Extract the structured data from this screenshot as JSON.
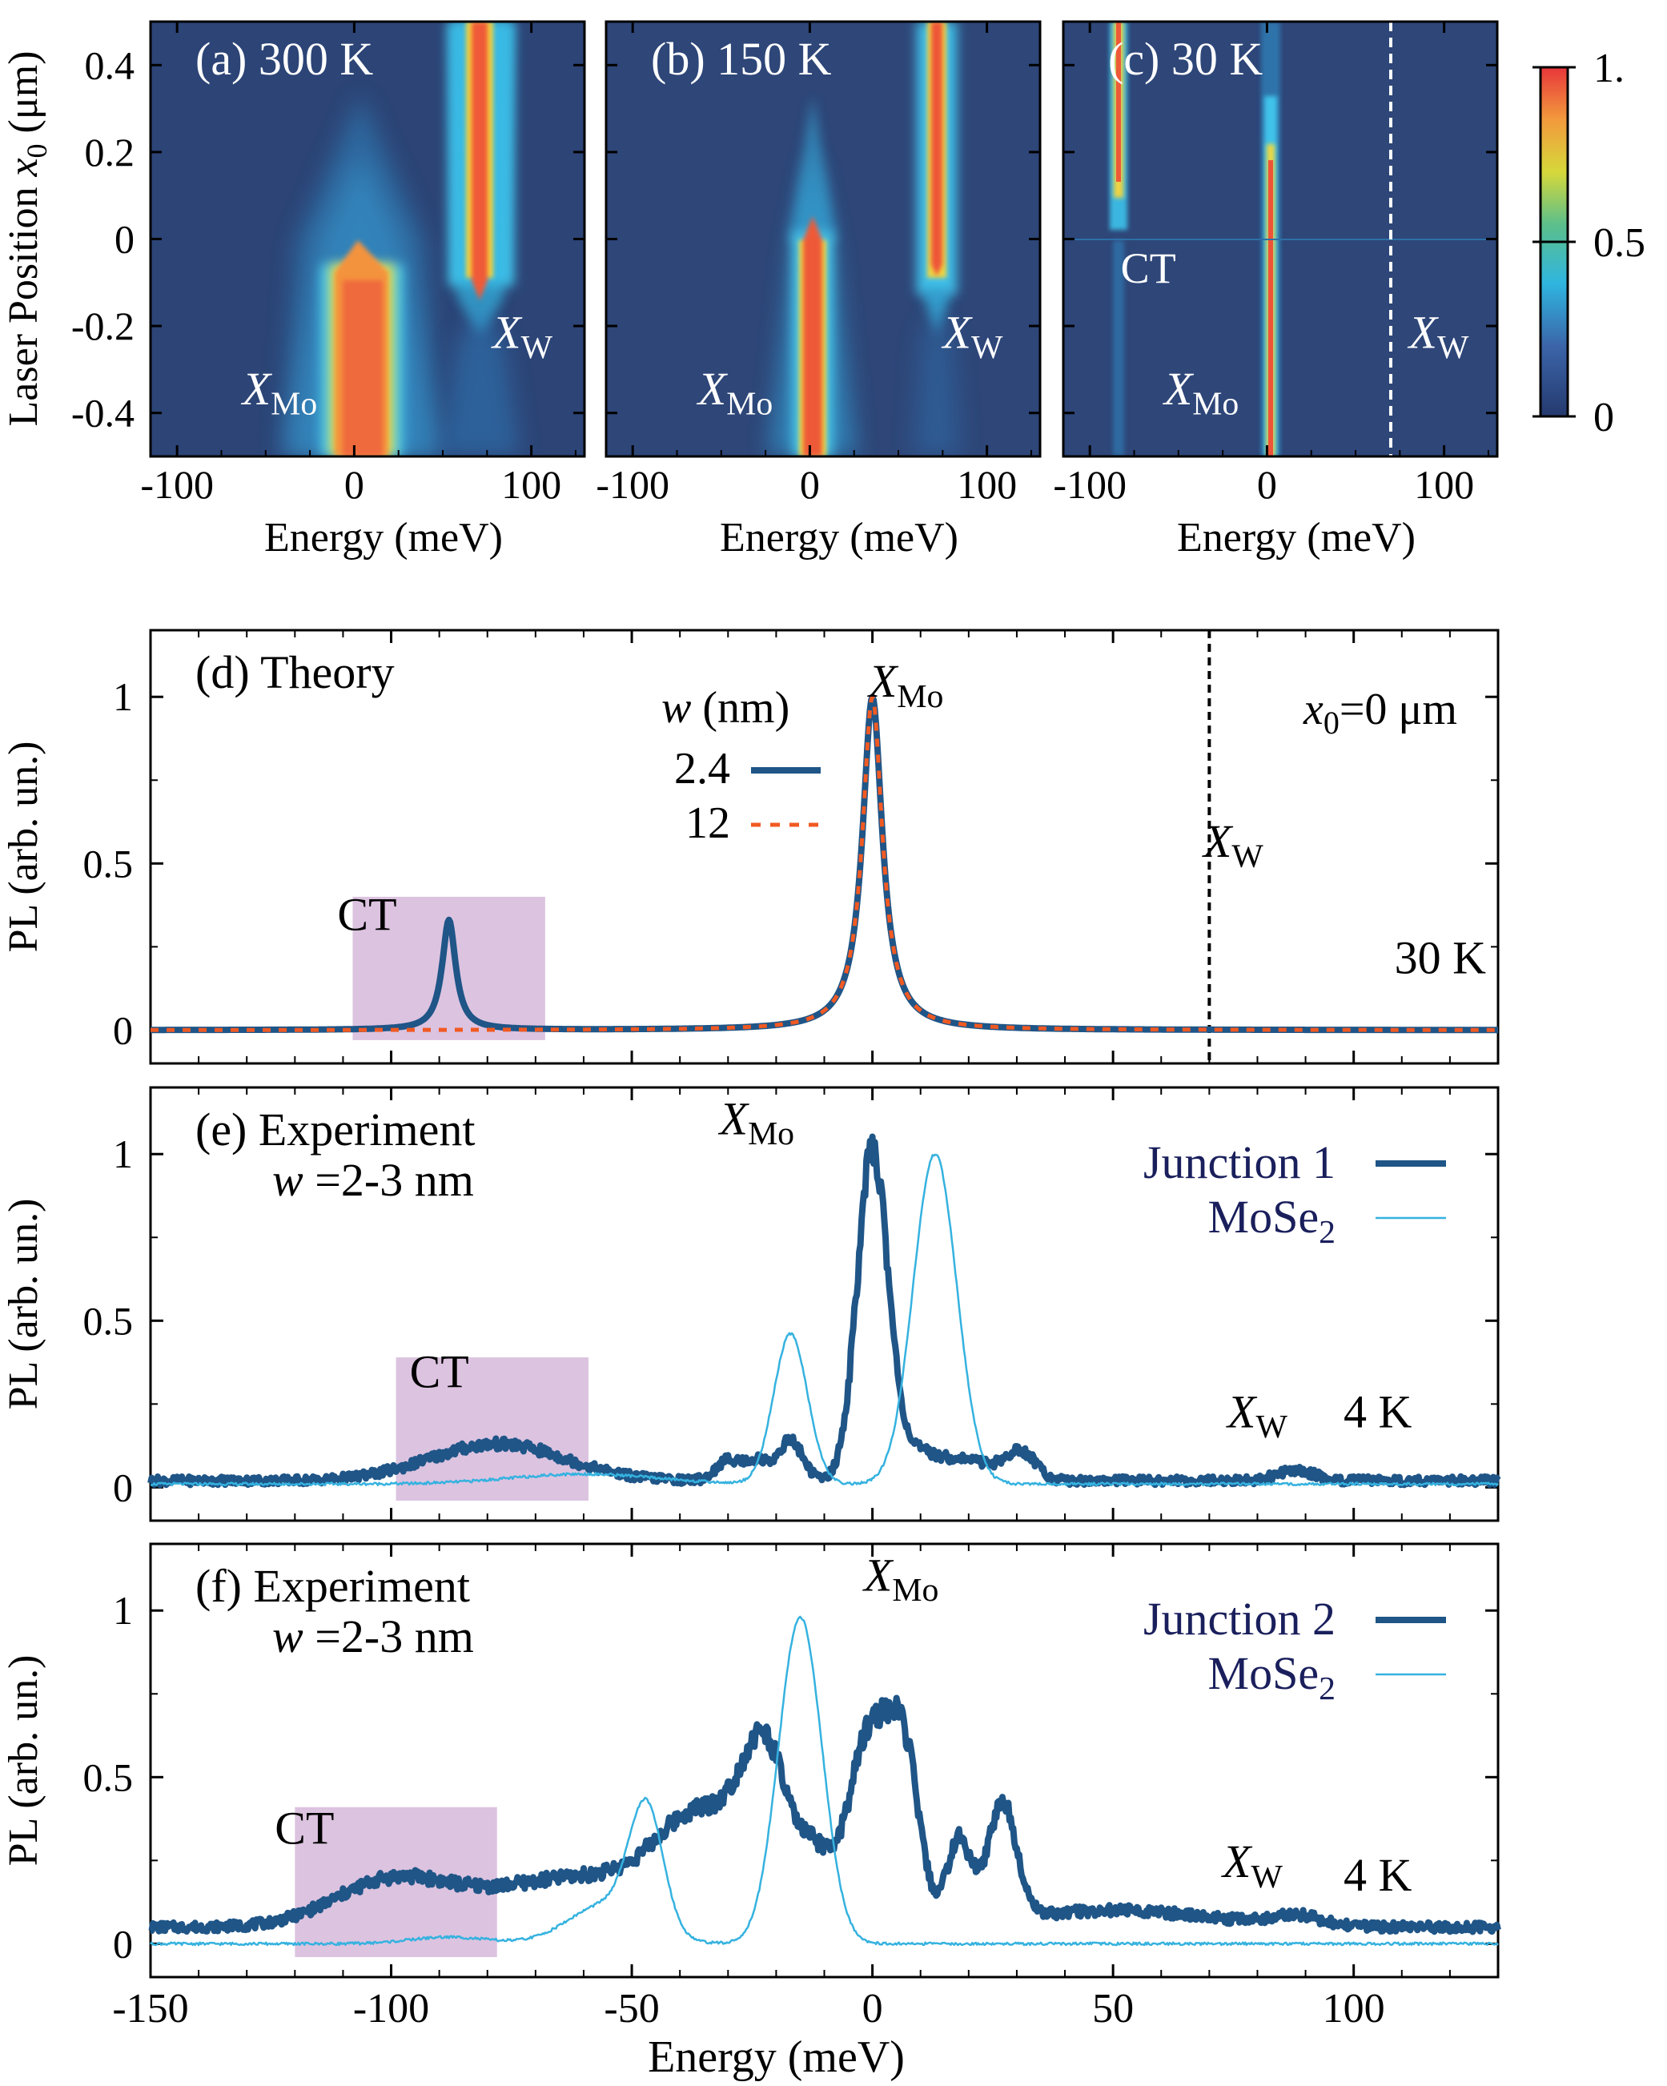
{
  "chart_data": [
    {
      "type": "heatmap",
      "id": "a",
      "panel_label": "(a) 300 K",
      "xlabel": "Energy (meV)",
      "ylabel": "Laser Position x0 (μm)",
      "ylabel_main": "Laser Position ",
      "ylabel_var": "x",
      "ylabel_sub": "0",
      "ylabel_unit": " (μm)",
      "xlim": [
        -115,
        130
      ],
      "ylim": [
        -0.5,
        0.5
      ],
      "x_ticks": [
        {
          "v": -100,
          "label": "-100"
        },
        {
          "v": 0,
          "label": "0"
        },
        {
          "v": 100,
          "label": "100"
        }
      ],
      "y_ticks": [
        {
          "v": 0.4,
          "label": "0.4"
        },
        {
          "v": 0.2,
          "label": "0.2"
        },
        {
          "v": 0,
          "label": "0"
        },
        {
          "v": -0.2,
          "label": "-0.2"
        },
        {
          "v": -0.4,
          "label": "-0.4"
        }
      ],
      "annotations": [
        {
          "main": "X",
          "sub": "Mo",
          "x": -42,
          "y": -0.38
        },
        {
          "main": "X",
          "sub": "W",
          "x": 95,
          "y": -0.25
        }
      ],
      "features": {
        "mo_peak_energy": 0,
        "w_peak_energy": 70,
        "description_levels": "XMo bright for x0 < -0.1, XW bright for x0 > -0.15"
      }
    },
    {
      "type": "heatmap",
      "id": "b",
      "panel_label": "(b) 150 K",
      "xlabel": "Energy (meV)",
      "xlim": [
        -115,
        130
      ],
      "ylim": [
        -0.5,
        0.5
      ],
      "x_ticks": [
        {
          "v": -100,
          "label": "-100"
        },
        {
          "v": 0,
          "label": "0"
        },
        {
          "v": 100,
          "label": "100"
        }
      ],
      "annotations": [
        {
          "main": "X",
          "sub": "Mo",
          "x": -42,
          "y": -0.38
        },
        {
          "main": "X",
          "sub": "W",
          "x": 92,
          "y": -0.25
        }
      ]
    },
    {
      "type": "heatmap",
      "id": "c",
      "panel_label": "(c) 30 K",
      "xlabel": "Energy (meV)",
      "xlim": [
        -115,
        130
      ],
      "ylim": [
        -0.5,
        0.5
      ],
      "x_ticks": [
        {
          "v": -100,
          "label": "-100"
        },
        {
          "v": 0,
          "label": "0"
        },
        {
          "v": 100,
          "label": "100"
        }
      ],
      "dashed_line_energy": 70,
      "ct_energy": -88,
      "annotations": [
        {
          "main": "CT",
          "sub": "",
          "x": -67,
          "y": -0.1
        },
        {
          "main": "X",
          "sub": "Mo",
          "x": -37,
          "y": -0.38
        },
        {
          "main": "X",
          "sub": "W",
          "x": 97,
          "y": -0.25
        }
      ]
    },
    {
      "type": "colorbar",
      "id": "cbar",
      "range": [
        0,
        1
      ],
      "ticks": [
        {
          "v": 1,
          "label": "1."
        },
        {
          "v": 0.5,
          "label": "0.5"
        },
        {
          "v": 0,
          "label": "0"
        }
      ]
    },
    {
      "type": "line",
      "id": "d",
      "panel_label": "(d) Theory",
      "ylabel": "PL (arb. un.)",
      "xlim": [
        -150,
        130
      ],
      "ylim": [
        -0.1,
        1.2
      ],
      "y_ticks": [
        {
          "v": 1,
          "label": "1"
        },
        {
          "v": 0.5,
          "label": "0.5"
        },
        {
          "v": 0,
          "label": "0"
        }
      ],
      "legend_title_var": "w",
      "legend_title_unit": " (nm)",
      "series": [
        {
          "name": "2.4",
          "color": "#1f5587",
          "style": "solid",
          "width": 8,
          "peaks": [
            {
              "center": -88,
              "amp": 0.33,
              "gamma": 1.7
            },
            {
              "center": 0,
              "amp": 1.0,
              "gamma": 2.5
            }
          ]
        },
        {
          "name": "12",
          "color": "#f05a23",
          "style": "dashed",
          "width": 5,
          "peaks": [
            {
              "center": 0,
              "amp": 1.0,
              "gamma": 2.5
            }
          ]
        }
      ],
      "ct_box": {
        "x": [
          -108,
          -68
        ],
        "y": [
          -0.03,
          0.4
        ]
      },
      "dashed_line_energy": 70,
      "annotations": [
        {
          "main": "CT",
          "sub": "",
          "x": -105,
          "y": 0.3
        },
        {
          "main": "X",
          "sub": "Mo",
          "x": 7,
          "y": 1.0
        },
        {
          "main": "X",
          "sub": "W",
          "x": 75,
          "y": 0.52
        },
        {
          "main": "30 K",
          "sub": "",
          "x": 118,
          "y": 0.17
        }
      ],
      "x0_label": {
        "var": "x",
        "sub": "0",
        "rest": "=0 μm"
      }
    },
    {
      "type": "line",
      "id": "e",
      "panel_label": "(e) Experiment",
      "width_label_var": "w",
      "width_label_rest": " =2-3 nm",
      "ylabel": "PL (arb. un.)",
      "xlim": [
        -150,
        130
      ],
      "ylim": [
        -0.1,
        1.2
      ],
      "y_ticks": [
        {
          "v": 1,
          "label": "1"
        },
        {
          "v": 0.5,
          "label": "0.5"
        },
        {
          "v": 0,
          "label": "0"
        }
      ],
      "series": [
        {
          "name": "Junction 1",
          "color": "#1f5587",
          "width": 8,
          "baseline": 0.02,
          "peaks": [
            {
              "center": 0,
              "amp": 0.97,
              "sigma": 3.2
            },
            {
              "center": -17,
              "amp": 0.12,
              "sigma": 2.5
            },
            {
              "center": -30,
              "amp": 0.06,
              "sigma": 2.5
            },
            {
              "center": -24,
              "amp": 0.06,
              "sigma": 2.5
            },
            {
              "center": 8,
              "amp": 0.08,
              "sigma": 5
            },
            {
              "center": 20,
              "amp": 0.06,
              "sigma": 6
            },
            {
              "center": 31,
              "amp": 0.08,
              "sigma": 3
            },
            {
              "center": -78,
              "amp": 0.11,
              "sigma": 14
            },
            {
              "center": 88,
              "amp": 0.03,
              "sigma": 4
            }
          ]
        },
        {
          "name": "MoSe2",
          "name_main": "MoSe",
          "name_sub": "2",
          "color": "#35b2df",
          "width": 2.5,
          "baseline": 0.01,
          "peaks": [
            {
              "center": -17,
              "amp": 0.45,
              "sigma": 3.5
            },
            {
              "center": 13,
              "amp": 0.99,
              "sigma": 4.5
            },
            {
              "center": -60,
              "amp": 0.03,
              "sigma": 15
            }
          ]
        }
      ],
      "ct_box": {
        "x": [
          -99,
          -59
        ],
        "y": [
          -0.04,
          0.39
        ]
      },
      "annotations": [
        {
          "main": "CT",
          "sub": "",
          "x": -90,
          "y": 0.3
        },
        {
          "main": "X",
          "sub": "Mo",
          "x": -24,
          "y": 1.06
        },
        {
          "main": "X",
          "sub": "W",
          "x": 80,
          "y": 0.18
        },
        {
          "main": "4 K",
          "sub": "",
          "x": 105,
          "y": 0.18
        }
      ]
    },
    {
      "type": "line",
      "id": "f",
      "panel_label": "(f) Experiment",
      "width_label_var": "w",
      "width_label_rest": " =2-3 nm",
      "ylabel": "PL (arb. un.)",
      "xlabel": "Energy (meV)",
      "xlim": [
        -150,
        130
      ],
      "ylim": [
        -0.1,
        1.2
      ],
      "x_ticks": [
        {
          "v": -150,
          "label": "-150"
        },
        {
          "v": -100,
          "label": "-100"
        },
        {
          "v": -50,
          "label": "-50"
        },
        {
          "v": 0,
          "label": "0"
        },
        {
          "v": 50,
          "label": "50"
        },
        {
          "v": 100,
          "label": "100"
        }
      ],
      "y_ticks": [
        {
          "v": 1,
          "label": "1"
        },
        {
          "v": 0.5,
          "label": "0.5"
        },
        {
          "v": 0,
          "label": "0"
        }
      ],
      "series": [
        {
          "name": "Junction 2",
          "color": "#1f5587",
          "width": 8,
          "baseline": 0.05,
          "peaks": [
            {
              "center": 0,
              "amp": 0.6,
              "sigma": 5
            },
            {
              "center": 7,
              "amp": 0.35,
              "sigma": 3
            },
            {
              "center": -22,
              "amp": 0.45,
              "sigma": 5
            },
            {
              "center": -35,
              "amp": 0.28,
              "sigma": 9
            },
            {
              "center": -12,
              "amp": 0.15,
              "sigma": 3
            },
            {
              "center": 18,
              "amp": 0.25,
              "sigma": 2.5
            },
            {
              "center": 27,
              "amp": 0.35,
              "sigma": 3
            },
            {
              "center": -100,
              "amp": 0.13,
              "sigma": 12
            },
            {
              "center": -60,
              "amp": 0.15,
              "sigma": 20
            },
            {
              "center": 50,
              "amp": 0.05,
              "sigma": 20
            },
            {
              "center": 88,
              "amp": 0.03,
              "sigma": 5
            }
          ]
        },
        {
          "name": "MoSe2",
          "name_main": "MoSe",
          "name_sub": "2",
          "color": "#35b2df",
          "width": 2.5,
          "baseline": 0.0,
          "peaks": [
            {
              "center": -15,
              "amp": 0.98,
              "sigma": 4.5
            },
            {
              "center": -47,
              "amp": 0.36,
              "sigma": 3.5
            },
            {
              "center": -55,
              "amp": 0.12,
              "sigma": 8
            },
            {
              "center": -88,
              "amp": 0.02,
              "sigma": 8
            }
          ]
        }
      ],
      "ct_box": {
        "x": [
          -120,
          -78
        ],
        "y": [
          -0.04,
          0.41
        ]
      },
      "annotations": [
        {
          "main": "CT",
          "sub": "",
          "x": -118,
          "y": 0.3
        },
        {
          "main": "X",
          "sub": "Mo",
          "x": 6,
          "y": 1.06
        },
        {
          "main": "X",
          "sub": "W",
          "x": 79,
          "y": 0.2
        },
        {
          "main": "4 K",
          "sub": "",
          "x": 105,
          "y": 0.16
        }
      ]
    }
  ]
}
